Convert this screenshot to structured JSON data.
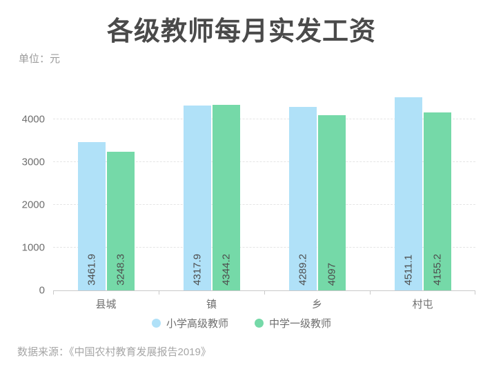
{
  "title": "各级教师每月实发工资",
  "unit_label": "单位：元",
  "source_note": "数据来源：《中国农村教育发展报告2019》",
  "colors": {
    "title_text": "#4a4a4a",
    "axis_text": "#6e6e6e",
    "muted_text": "#9b9b9b",
    "series_blue": "#b0e1f8",
    "series_green": "#75d9a8",
    "axis_line": "#c9c9c9",
    "gridline": "#e4e4e4"
  },
  "chart_data": {
    "type": "bar",
    "title": "各级教师每月实发工资",
    "unit": "元",
    "categories": [
      "县城",
      "镇",
      "乡",
      "村屯"
    ],
    "series": [
      {
        "name": "小学高级教师",
        "color": "#b0e1f8",
        "values": [
          3461.9,
          4317.9,
          4289.2,
          4511.1
        ]
      },
      {
        "name": "中学一级教师",
        "color": "#75d9a8",
        "values": [
          3248.3,
          4344.2,
          4097,
          4155.2
        ]
      }
    ],
    "value_labels": [
      "3461.9",
      "3248.3",
      "4317.9",
      "4344.2",
      "4289.2",
      "4097",
      "4511.1",
      "4155.2"
    ],
    "xlabel": "",
    "ylabel": "",
    "y_ticks": [
      0,
      1000,
      2000,
      3000,
      4000
    ],
    "ylim": [
      0,
      4983
    ],
    "grid": "horizontal-dashed",
    "legend_position": "bottom",
    "value_label_style": "inside-bottom-rotated-90"
  }
}
